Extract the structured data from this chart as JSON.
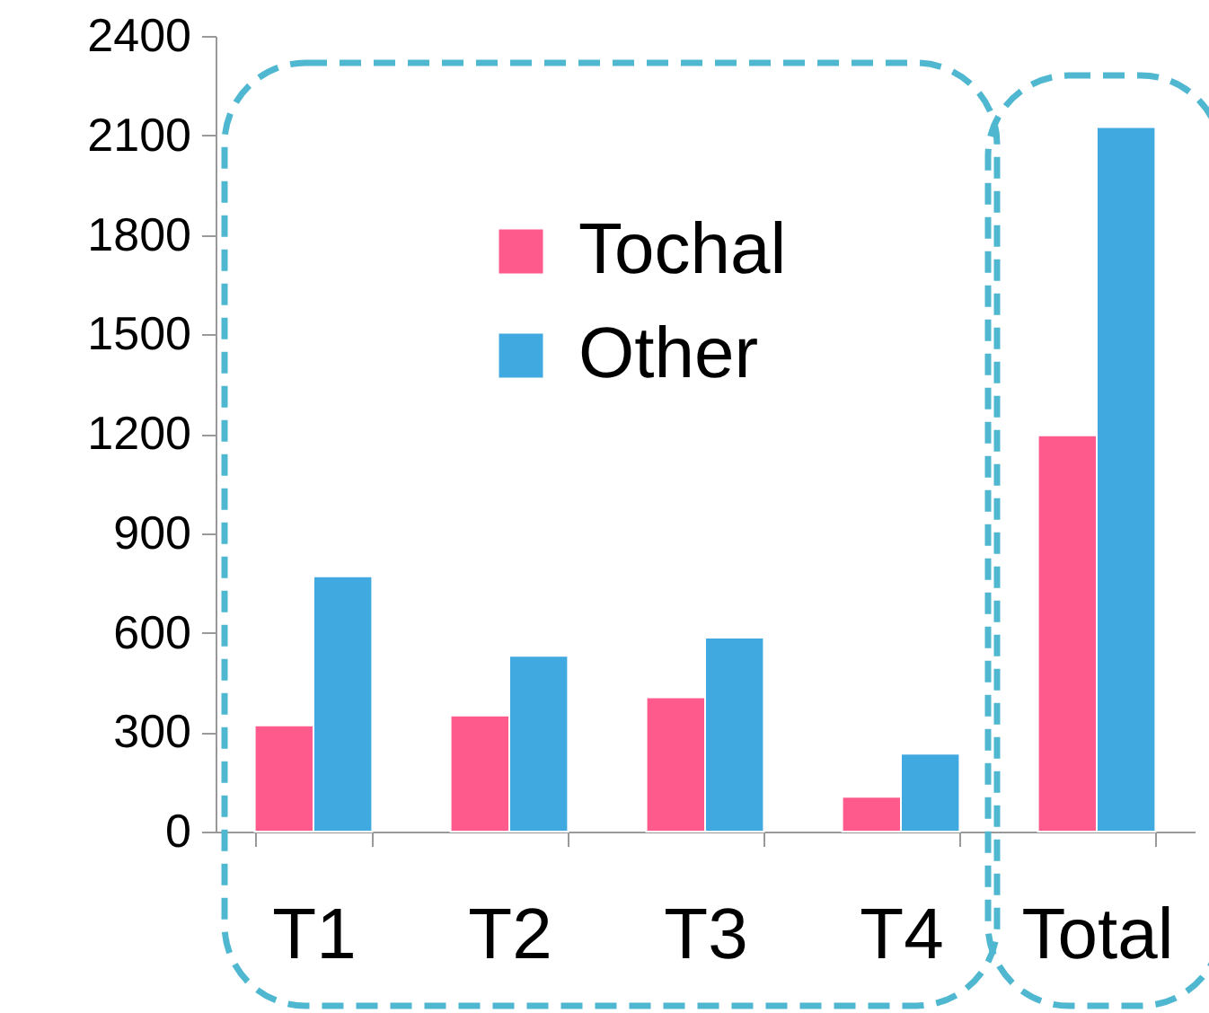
{
  "chart_data": {
    "type": "bar",
    "categories": [
      "T1",
      "T2",
      "T3",
      "T4",
      "Total"
    ],
    "series": [
      {
        "name": "Tochal",
        "color": "#ff5a8c",
        "values": [
          320,
          350,
          405,
          105,
          1195
        ]
      },
      {
        "name": "Other",
        "color": "#40a9e0",
        "values": [
          770,
          530,
          585,
          235,
          2125
        ]
      }
    ],
    "ylim": [
      0,
      2400
    ],
    "yticks": [
      0,
      300,
      600,
      900,
      1200,
      1500,
      1800,
      2100,
      2400
    ],
    "grid": false,
    "legend": "top"
  }
}
